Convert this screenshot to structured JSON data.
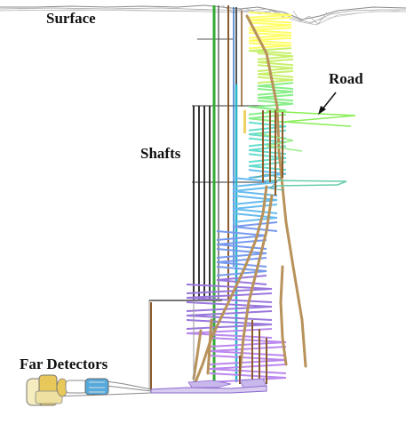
{
  "labels": {
    "surface": "Surface",
    "road": "Road",
    "shafts": "Shafts",
    "far_detectors": "Far Detectors"
  },
  "colors": {
    "terrain": "#8a8a8a",
    "shaft_dark": "#333333",
    "shaft_green": "#33aa33",
    "shaft_brown": "#8b5a2b",
    "shaft_cyan": "#22b5c8",
    "ramp_brown": "#b8925a",
    "ramp_gradient": [
      "#ffff66",
      "#c8f06a",
      "#88ee88",
      "#66ddcc",
      "#66bbee",
      "#7799ee",
      "#9977dd",
      "#bb88ee"
    ],
    "detector_gold": "#e8c85a",
    "detector_blue": "#55aadd",
    "cavern_outline": "#999999",
    "hall_purple": "#8866cc"
  },
  "icons": {
    "road_pointer": "arrow-icon"
  }
}
